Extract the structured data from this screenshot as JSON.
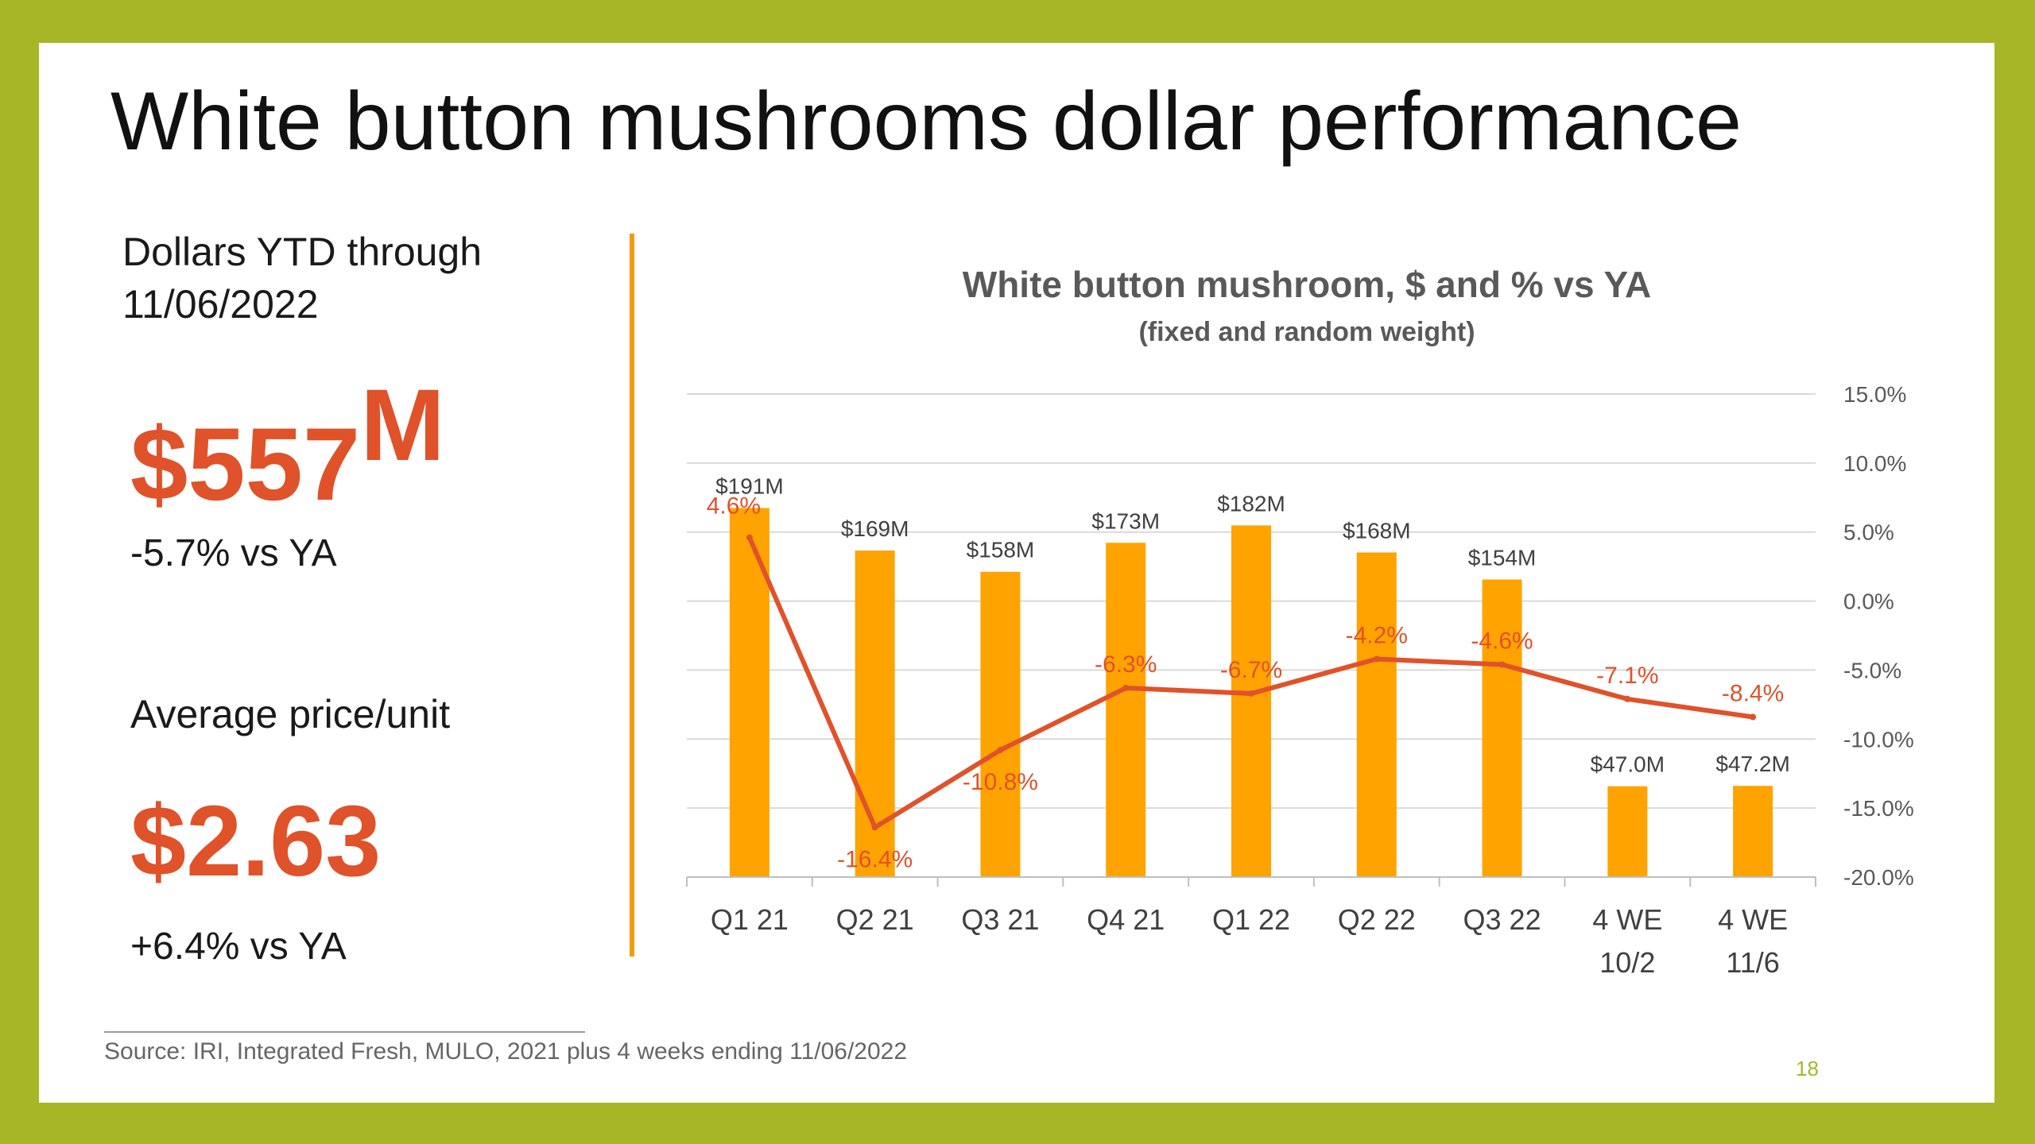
{
  "slide": {
    "title": "White button mushrooms dollar performance",
    "ytd_label": "Dollars YTD through 11/06/2022",
    "ytd_value": "$557",
    "ytd_unit": "M",
    "ytd_change": "-5.7% vs YA",
    "price_label": "Average price/unit",
    "price_value": "$2.63",
    "price_change": "+6.4% vs YA",
    "source": "Source: IRI, Integrated Fresh, MULO, 2021 plus 4 weeks ending 11/06/2022",
    "page_number": "18"
  },
  "colors": {
    "border": "#a7b627",
    "accent": "#e0522a",
    "bar": "#ffa300",
    "line": "#e0522a",
    "divider": "#f39c12"
  },
  "chart_data": {
    "type": "bar",
    "title": "White button mushroom, $ and % vs YA",
    "subtitle": "(fixed and random weight)",
    "categories": [
      "Q1 21",
      "Q2 21",
      "Q3 21",
      "Q4 21",
      "Q1 22",
      "Q2 22",
      "Q3 22",
      "4 WE 10/2",
      "4 WE 11/6"
    ],
    "category_lines": [
      [
        "Q1 21"
      ],
      [
        "Q2 21"
      ],
      [
        "Q3 21"
      ],
      [
        "Q4 21"
      ],
      [
        "Q1 22"
      ],
      [
        "Q2 22"
      ],
      [
        "Q3 22"
      ],
      [
        "4 WE",
        "10/2"
      ],
      [
        "4 WE",
        "11/6"
      ]
    ],
    "series": [
      {
        "type": "bar",
        "unit": "$M",
        "values": [
          191,
          169,
          158,
          173,
          182,
          168,
          154,
          47.0,
          47.2
        ],
        "labels": [
          "$191M",
          "$169M",
          "$158M",
          "$173M",
          "$182M",
          "$168M",
          "$154M",
          "$47.0M",
          "$47.2M"
        ]
      },
      {
        "type": "line",
        "axis": "right",
        "unit": "%",
        "values": [
          4.6,
          -16.4,
          -10.8,
          -6.3,
          -6.7,
          -4.2,
          -4.6,
          -7.1,
          -8.4
        ],
        "labels": [
          "4.6%",
          "-16.4%",
          "-10.8%",
          "-6.3%",
          "-6.7%",
          "-4.2%",
          "-4.6%",
          "-7.1%",
          "-8.4%"
        ]
      }
    ],
    "right_axis": {
      "ticks": [
        15,
        10,
        5,
        0,
        -5,
        -10,
        -15,
        -20
      ],
      "tick_labels": [
        "15.0%",
        "10.0%",
        "5.0%",
        "0.0%",
        "-5.0%",
        "-10.0%",
        "-15.0%",
        "-20.0%"
      ],
      "ylim": [
        -20,
        15
      ]
    },
    "left_axis": {
      "ylim": [
        0,
        250
      ],
      "visible": false
    },
    "grid": true,
    "legend": "none"
  }
}
